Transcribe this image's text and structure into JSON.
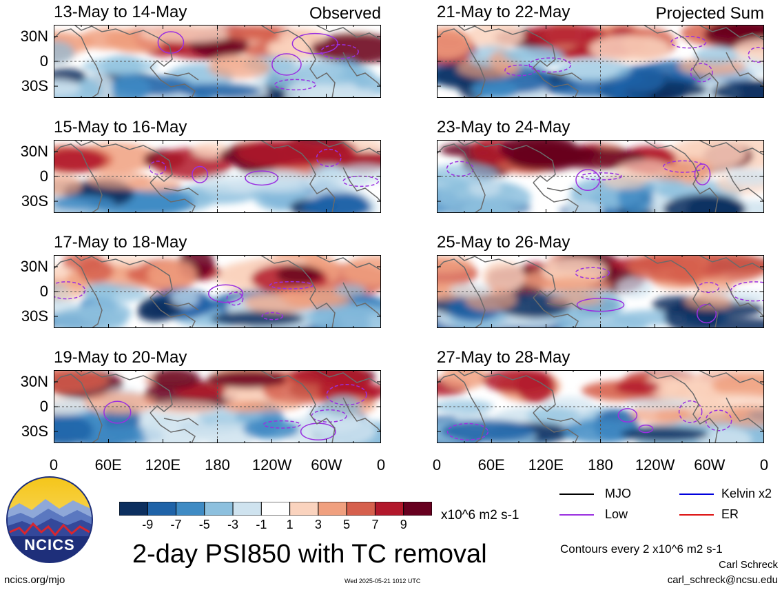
{
  "title": "2-day PSI850 with TC removal",
  "unit_label": "x10^6 m2 s-1",
  "contour_note": "Contours every 2 x10^6 m2 s-1",
  "author": "Carl Schreck",
  "email": "carl_schreck@ncsu.edu",
  "site": "ncics.org/mjo",
  "timestamp": "Wed 2025-05-21 1012 UTC",
  "logo_text": "NCICS",
  "latitude_labels": [
    "30N",
    "0",
    "30S"
  ],
  "longitude_labels": [
    "0",
    "60E",
    "120E",
    "180",
    "120W",
    "60W",
    "0"
  ],
  "colorbar": {
    "labels": [
      "-9",
      "-7",
      "-5",
      "-3",
      "-1",
      "1",
      "3",
      "5",
      "7",
      "9"
    ],
    "colors": [
      "#0c2f5f",
      "#1f63a8",
      "#3f8bc4",
      "#8dc0de",
      "#cfe3ef",
      "#ffffff",
      "#fad3be",
      "#f0a07f",
      "#d6604d",
      "#b2182b",
      "#67001f"
    ]
  },
  "legend": [
    {
      "name": "MJO",
      "color": "#000000"
    },
    {
      "name": "Kelvin x2",
      "color": "#0000dd"
    },
    {
      "name": "Low",
      "color": "#9a30e0"
    },
    {
      "name": "ER",
      "color": "#dd1111"
    }
  ],
  "columns": [
    {
      "tag": "Observed",
      "panels": [
        "13-May to 14-May",
        "15-May to 16-May",
        "17-May to 18-May",
        "19-May to 20-May"
      ]
    },
    {
      "tag": "Projected Sum",
      "panels": [
        "21-May to 22-May",
        "23-May to 24-May",
        "25-May to 26-May",
        "27-May to 28-May"
      ]
    }
  ]
}
